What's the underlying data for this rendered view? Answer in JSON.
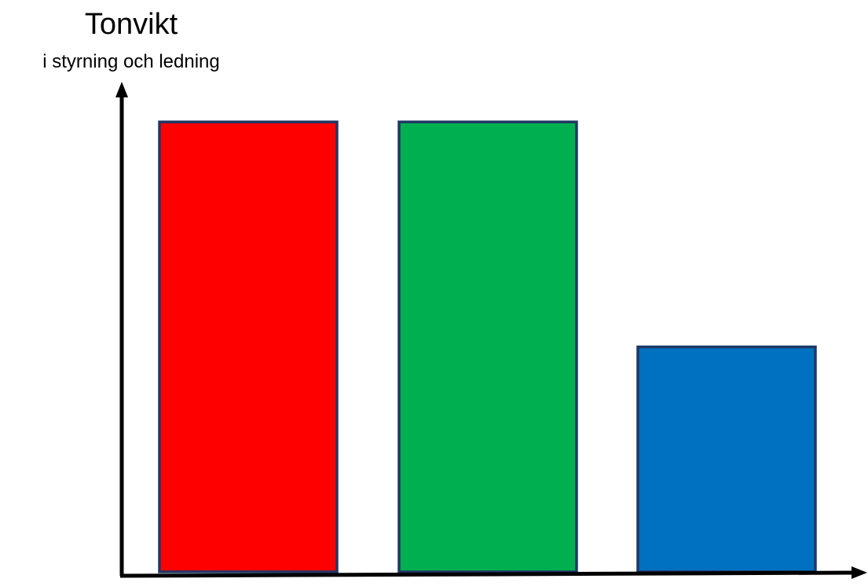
{
  "chart_data": {
    "type": "bar",
    "title": "Tonvikt",
    "subtitle": "i styrning och ledning",
    "categories": [
      "",
      "",
      ""
    ],
    "values": [
      1.0,
      1.0,
      0.5
    ],
    "colors": [
      "#ff0000",
      "#00b050",
      "#0070c0"
    ],
    "bar_border_color": "#1f3864",
    "axis_color": "#000000",
    "ylim": [
      0,
      1.065
    ],
    "grid": false,
    "legend": "none"
  }
}
